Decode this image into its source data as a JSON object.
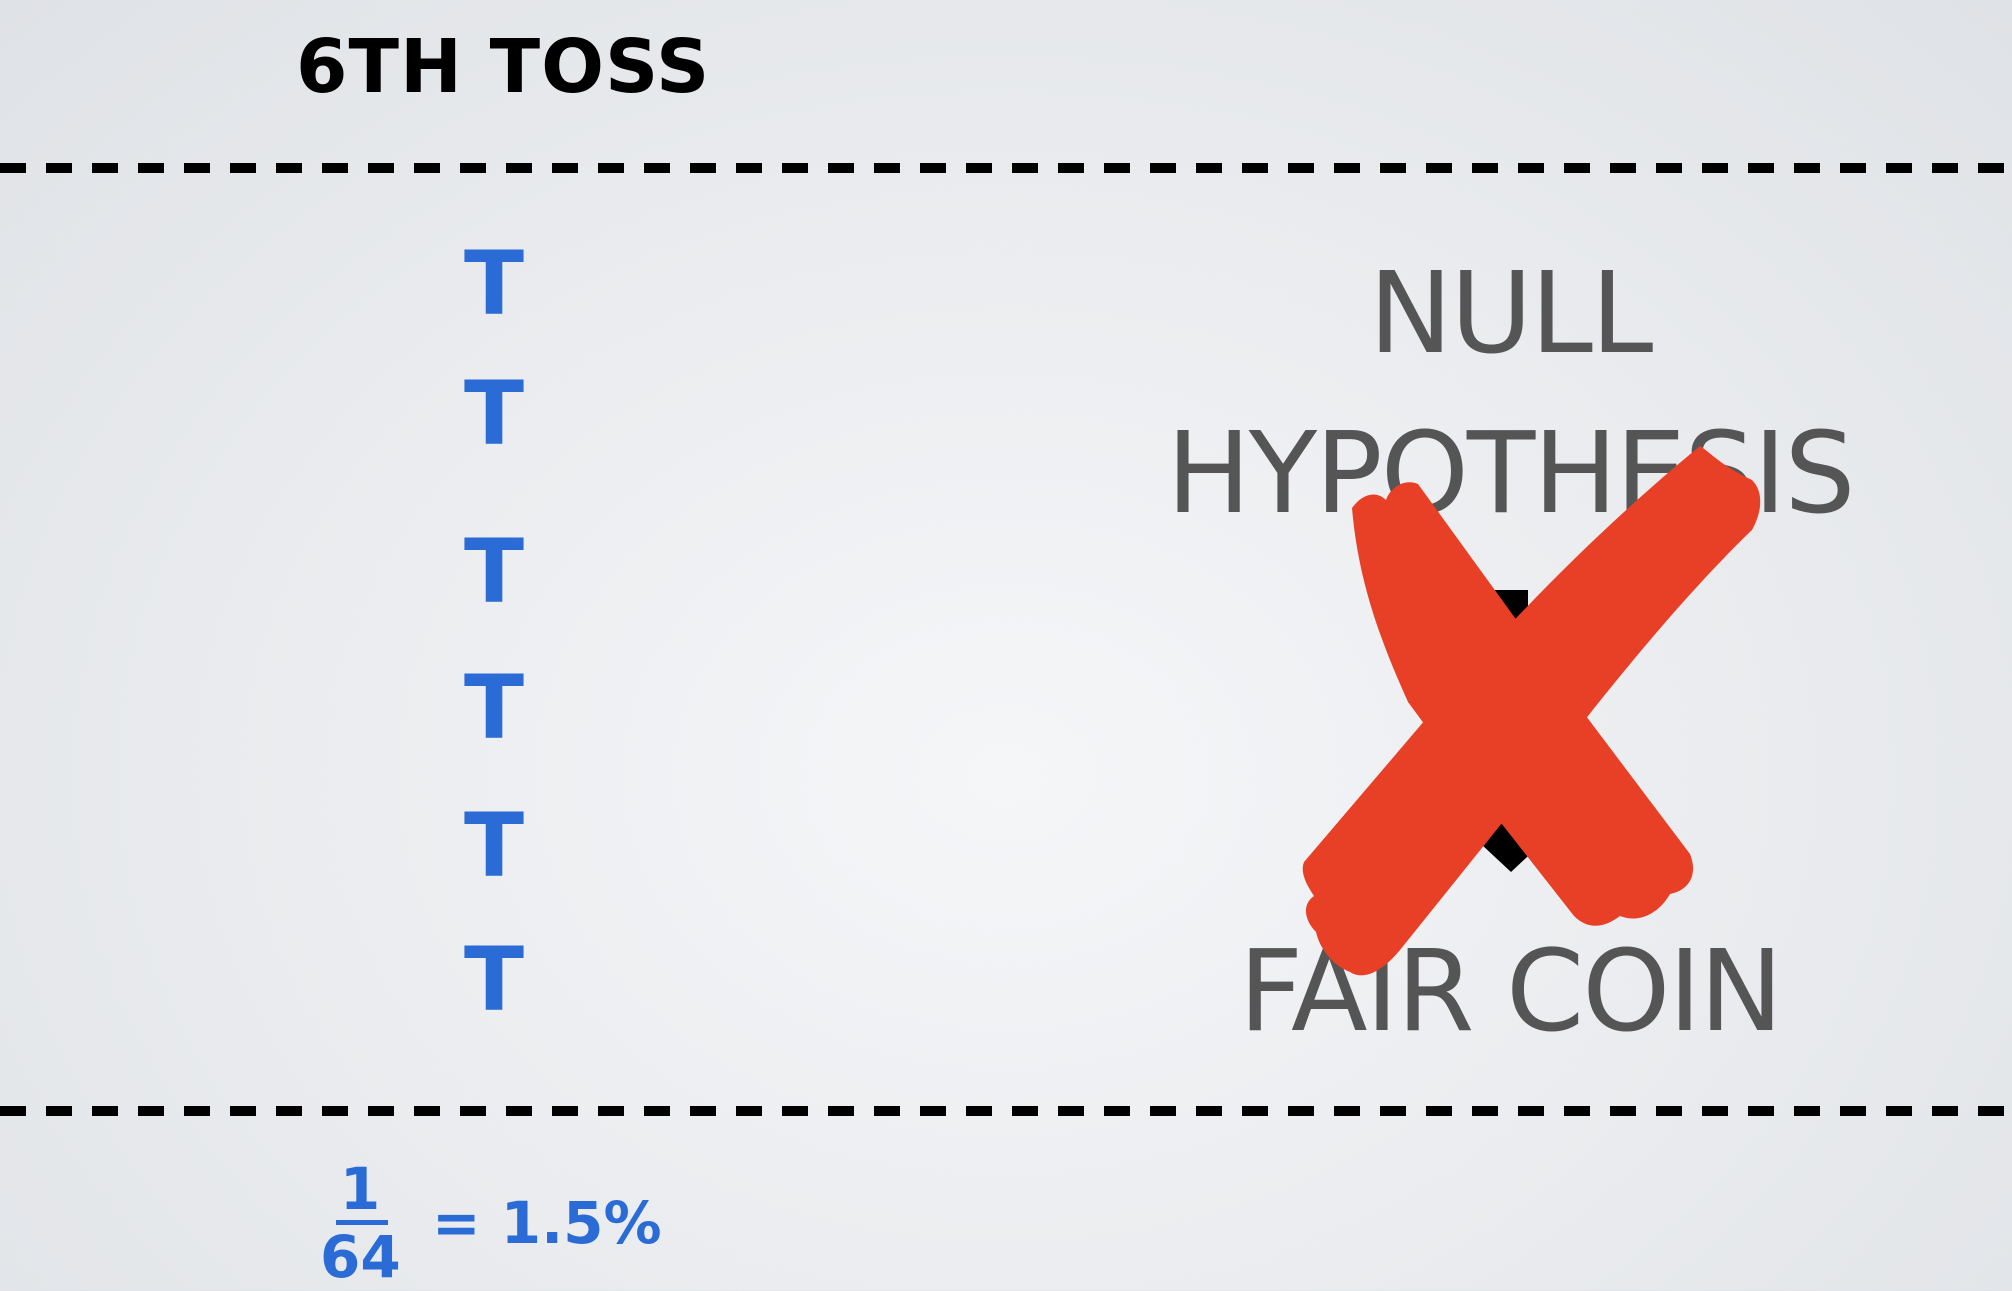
{
  "slide": {
    "title": "6TH TOSS",
    "tosses": [
      "T",
      "T",
      "T",
      "T",
      "T",
      "T"
    ],
    "hypothesis": {
      "line1": "NULL",
      "line2": "HYPOTHESIS",
      "line3": "FAIR COIN",
      "arrow_icon": "down-arrow-icon",
      "rejected_icon": "red-cross-icon"
    },
    "probability": {
      "numerator": "1",
      "denominator": "64",
      "result": "= 1.5%"
    },
    "colors": {
      "toss_blue": "#2a6bd6",
      "cross_red": "#e84026",
      "text_gray": "#555555"
    }
  }
}
